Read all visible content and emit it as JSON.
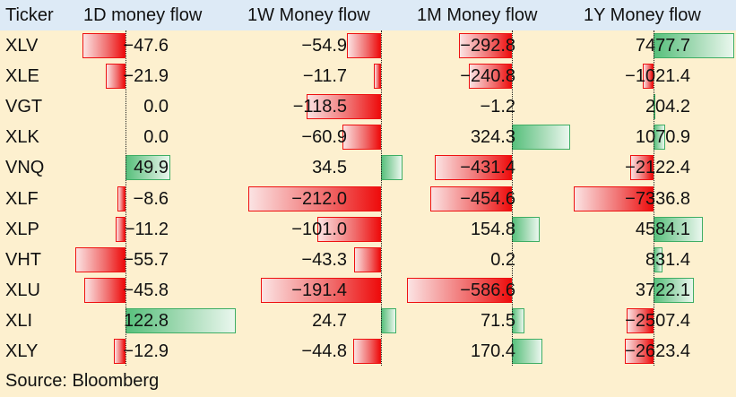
{
  "chart_data": {
    "type": "table",
    "headers": [
      "Ticker",
      "1D money flow",
      "1W Money flow",
      "1M Money flow",
      "1Y Money flow"
    ],
    "rows": [
      {
        "ticker": "XLV",
        "values": [
          "−47.6",
          "−54.9",
          "−292.8",
          "7477.7"
        ],
        "nums": [
          -47.6,
          -54.9,
          -292.8,
          7477.7
        ]
      },
      {
        "ticker": "XLE",
        "values": [
          "−21.9",
          "−11.7",
          "−240.8",
          "−1021.4"
        ],
        "nums": [
          -21.9,
          -11.7,
          -240.8,
          -1021.4
        ]
      },
      {
        "ticker": "VGT",
        "values": [
          "0.0",
          "−118.5",
          "−1.2",
          "204.2"
        ],
        "nums": [
          0.0,
          -118.5,
          -1.2,
          204.2
        ]
      },
      {
        "ticker": "XLK",
        "values": [
          "0.0",
          "−60.9",
          "324.3",
          "1070.9"
        ],
        "nums": [
          0.0,
          -60.9,
          324.3,
          1070.9
        ]
      },
      {
        "ticker": "VNQ",
        "values": [
          "49.9",
          "34.5",
          "−431.4",
          "−2122.4"
        ],
        "nums": [
          49.9,
          34.5,
          -431.4,
          -2122.4
        ]
      },
      {
        "ticker": "XLF",
        "values": [
          "−8.6",
          "−212.0",
          "−454.6",
          "−7336.8"
        ],
        "nums": [
          -8.6,
          -212.0,
          -454.6,
          -7336.8
        ]
      },
      {
        "ticker": "XLP",
        "values": [
          "−11.2",
          "−101.0",
          "154.8",
          "4584.1"
        ],
        "nums": [
          -11.2,
          -101.0,
          154.8,
          4584.1
        ]
      },
      {
        "ticker": "VHT",
        "values": [
          "−55.7",
          "−43.3",
          "0.2",
          "831.4"
        ],
        "nums": [
          -55.7,
          -43.3,
          0.2,
          831.4
        ]
      },
      {
        "ticker": "XLU",
        "values": [
          "−45.8",
          "−191.4",
          "−586.6",
          "3722.1"
        ],
        "nums": [
          -45.8,
          -191.4,
          -586.6,
          3722.1
        ]
      },
      {
        "ticker": "XLI",
        "values": [
          "122.8",
          "24.7",
          "71.5",
          "−2507.4"
        ],
        "nums": [
          122.8,
          24.7,
          71.5,
          -2507.4
        ]
      },
      {
        "ticker": "XLY",
        "values": [
          "−12.9",
          "−44.8",
          "170.4",
          "−2623.4"
        ],
        "nums": [
          -12.9,
          -44.8,
          170.4,
          -2623.4
        ]
      }
    ],
    "source": "Source: Bloomberg",
    "colors": {
      "negative": "#ee0c0c",
      "positive": "#57c07c",
      "background": "#fdf0cf",
      "header": "#ddeaf6"
    }
  }
}
